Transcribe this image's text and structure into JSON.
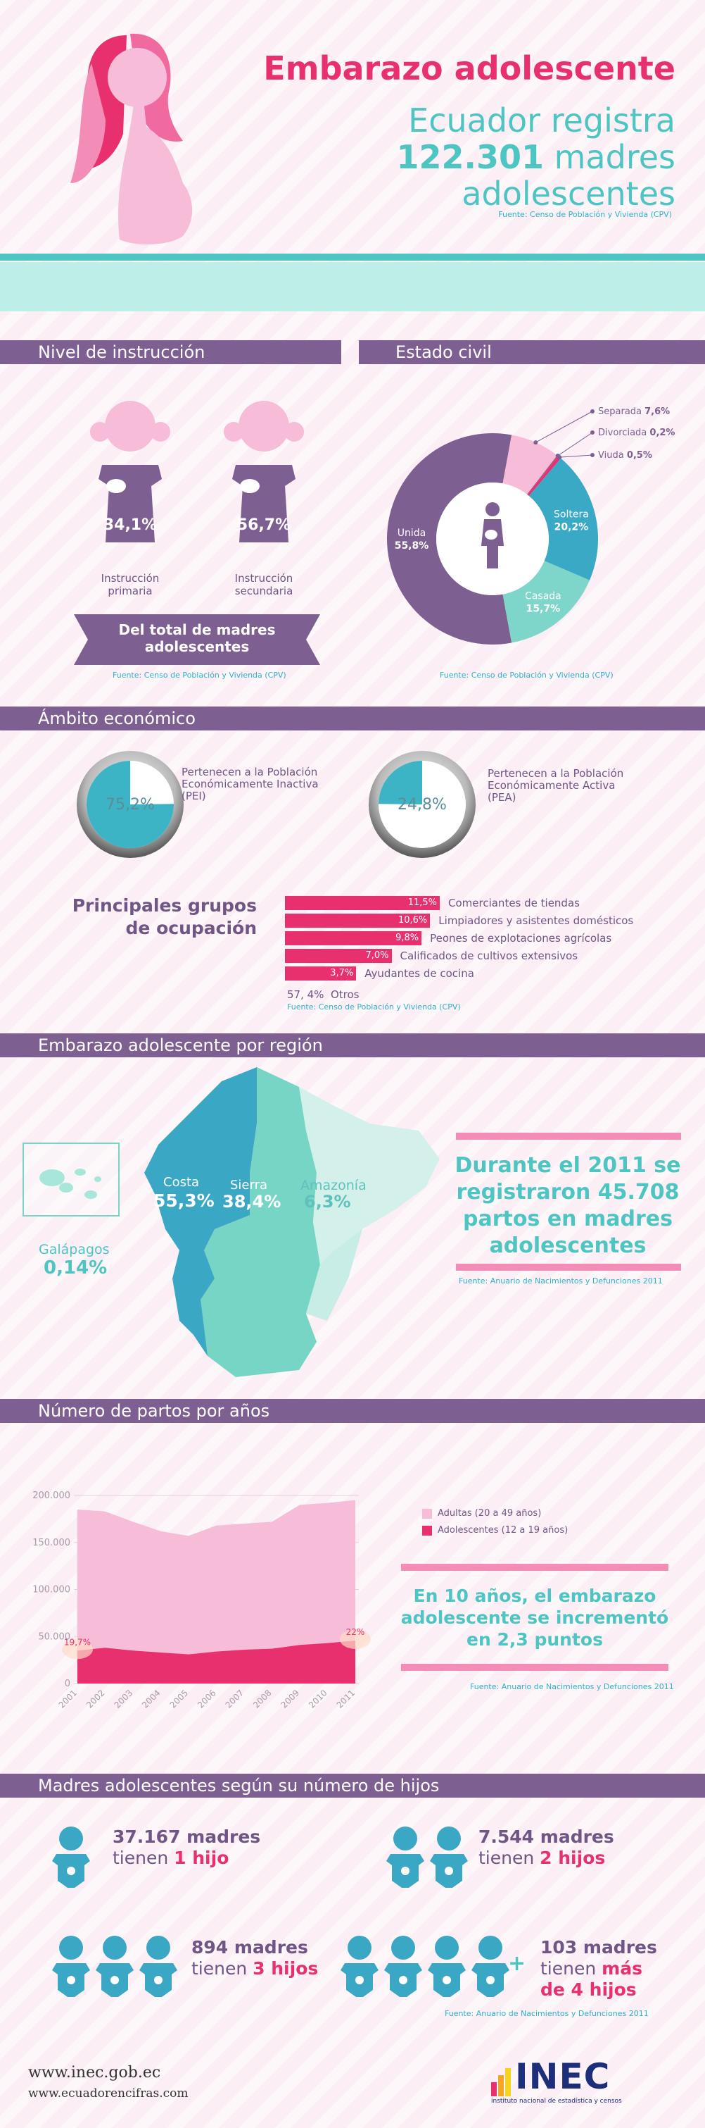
{
  "header": {
    "title": "Embarazo adolescente",
    "line1": "Ecuador registra",
    "number": "122.301",
    "line2": "madres",
    "line3": "adolescentes",
    "source": "Fuente: Censo de Población y Vivienda (CPV)"
  },
  "instruction": {
    "section_title": "Nivel de instrucción",
    "primary_pct": "34,1%",
    "primary_label_1": "Instrucción",
    "primary_label_2": "primaria",
    "secondary_pct": "56,7%",
    "secondary_label_1": "Instrucción",
    "secondary_label_2": "secundaria",
    "banner_1": "Del total de madres",
    "banner_2": "adolescentes",
    "source": "Fuente: Censo de Población y Vivienda (CPV)"
  },
  "civil": {
    "section_title": "Estado civil",
    "source": "Fuente: Censo de Población y Vivienda (CPV)",
    "slices": [
      {
        "name": "Unida",
        "value": 55.8,
        "label": "55,8%",
        "color": "#7d5f91"
      },
      {
        "name": "Separada",
        "value": 7.6,
        "label": "7,6%",
        "color": "#f7bcd8"
      },
      {
        "name": "Divorciada",
        "value": 0.2,
        "label": "0,2%",
        "color": "#b04c84"
      },
      {
        "name": "Viuda",
        "value": 0.5,
        "label": "0,5%",
        "color": "#e8306f"
      },
      {
        "name": "Soltera",
        "value": 20.2,
        "label": "20,2%",
        "color": "#39a9c6"
      },
      {
        "name": "Casada",
        "value": 15.7,
        "label": "15,7%",
        "color": "#7dd6c9"
      }
    ]
  },
  "economic": {
    "section_title": "Ámbito económico",
    "pei_value": 75.2,
    "pei_pct": "75,2%",
    "pei_text_1": "Pertenecen a la Población",
    "pei_text_2": "Económicamente Inactiva",
    "pei_text_3": "(PEI)",
    "pea_value": 24.8,
    "pea_pct": "24,8%",
    "pea_text_1": "Pertenecen a la Población",
    "pea_text_2": "Económicamente Activa",
    "pea_text_3": "(PEA)",
    "groups_title_1": "Principales grupos",
    "groups_title_2": "de ocupación",
    "occupations": [
      {
        "pct": "11,5%",
        "value": 11.5,
        "label": "Comerciantes de tiendas"
      },
      {
        "pct": "10,6%",
        "value": 10.6,
        "label": "Limpiadores y asistentes domésticos"
      },
      {
        "pct": "9,8%",
        "value": 9.8,
        "label": "Peones de explotaciones agrícolas"
      },
      {
        "pct": "7,0%",
        "value": 7.0,
        "label": "Calificados de cultivos extensivos"
      },
      {
        "pct": "3,7%",
        "value": 3.7,
        "label": "Ayudantes de cocina"
      }
    ],
    "others_pct": "57, 4%",
    "others_label": "Otros",
    "source": "Fuente: Censo de Población y Vivienda (CPV)"
  },
  "region": {
    "section_title": "Embarazo adolescente por región",
    "costa_name": "Costa",
    "costa_pct": "55,3%",
    "sierra_name": "Sierra",
    "sierra_pct": "38,4%",
    "amazonia_name": "Amazonía",
    "amazonia_pct": "6,3%",
    "galapagos_name": "Galápagos",
    "galapagos_pct": "0,14%",
    "highlight_1": "Durante el 2011 se",
    "highlight_2": "registraron 45.708",
    "highlight_3": "partos en madres",
    "highlight_4": "adolescentes",
    "source": "Fuente: Anuario de Nacimientos y Defunciones 2011",
    "colors": {
      "costa": "#3aa8c4",
      "sierra": "#77d5c6",
      "amazonia": "#c8ece6"
    }
  },
  "births": {
    "section_title": "Número de partos por años",
    "source": "Fuente: Anuario de Nacimientos y Defunciones 2011",
    "note_1": "En 10 años, el embarazo",
    "note_2": "adolescente se incrementó",
    "note_3": "en 2,3 puntos"
  },
  "chart_data": {
    "type": "area",
    "x": [
      "2001",
      "2002",
      "2003",
      "2004",
      "2005",
      "2006",
      "2007",
      "2008",
      "2009",
      "2010",
      "2011"
    ],
    "y_ticks": [
      "0",
      "50.000",
      "100.000",
      "150.000",
      "200.000"
    ],
    "ylim": [
      0,
      200000
    ],
    "series": [
      {
        "name": "Adultas (20 a 49 años)",
        "color": "#f7bcd8",
        "values": [
          185000,
          183000,
          172000,
          162000,
          157000,
          168000,
          170000,
          172000,
          190000,
          192000,
          195000
        ]
      },
      {
        "name": "Adolescentes (12 a 19 años)",
        "color": "#e8306f",
        "values": [
          35000,
          38000,
          35000,
          33000,
          31000,
          34000,
          36000,
          37000,
          41000,
          43000,
          45708
        ]
      }
    ],
    "annotations": [
      {
        "x": "2001",
        "text": "19,7%"
      },
      {
        "x": "2011",
        "text": "22%"
      }
    ]
  },
  "children": {
    "section_title": "Madres adolescentes según su número de hijos",
    "one_count": "37.167 madres",
    "one_text_a": "tienen ",
    "one_text_b": "1 hijo",
    "two_count": "7.544 madres",
    "two_text_a": "tienen ",
    "two_text_b": "2 hijos",
    "three_count": "894 madres",
    "three_text_a": "tienen ",
    "three_text_b": "3 hijos",
    "four_count": "103 madres",
    "four_text_a": "tienen ",
    "four_text_b": "más",
    "four_text_c": "de 4 hijos",
    "plus": "+",
    "source": "Fuente: Anuario de Nacimientos y Defunciones 2011"
  },
  "footer": {
    "url_1": "www.inec.gob.ec",
    "url_2": "www.ecuadorencifras.com",
    "logo_text": "INEC",
    "logo_subtitle": "instituto nacional de estadística y censos"
  }
}
